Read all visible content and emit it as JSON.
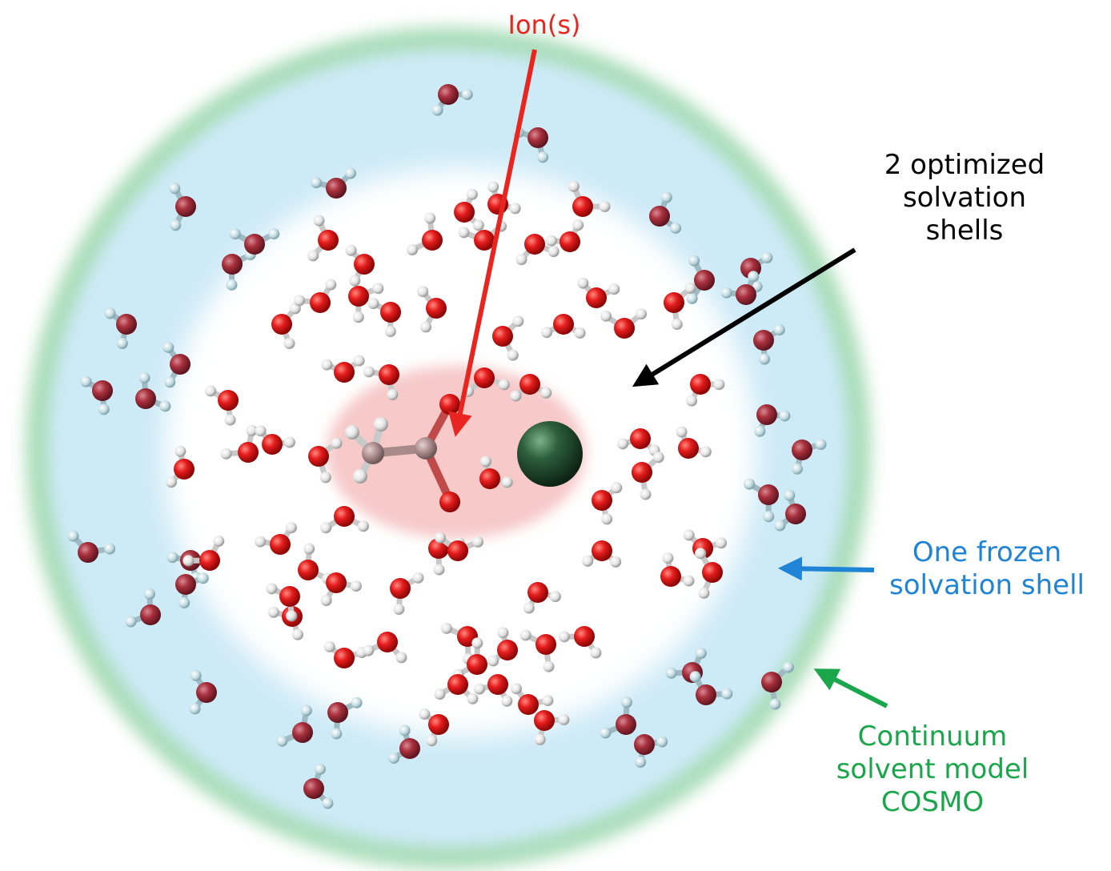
{
  "labels": {
    "ion": {
      "text": "Ion(s)",
      "color": "#e8261f"
    },
    "optimized": {
      "lines": [
        "2 optimized",
        "solvation",
        "shells"
      ],
      "color": "#000000"
    },
    "frozen": {
      "lines": [
        "One frozen",
        "solvation shell"
      ],
      "color": "#1f84d6"
    },
    "cosmo": {
      "lines": [
        "Continuum",
        "solvent model",
        "COSMO"
      ],
      "color": "#1aa64a"
    }
  },
  "colors": {
    "continuum_ring": "#a9ddb8",
    "frozen_shell": "#cdeaf7",
    "optimized_region": "#ffffff",
    "ion_region": "#f7c9c9",
    "oxygen_inner": "#e01515",
    "oxygen_outer": "#a8303c",
    "hydrogen_inner": "#eeeeee",
    "hydrogen_outer": "#c4dde3",
    "carbon": "#a98a8a",
    "counter_ion": "#2c5e3c",
    "arrow_ion": "#e8261f",
    "arrow_optimized": "#000000",
    "arrow_frozen": "#1f84d6",
    "arrow_cosmo": "#1aa64a"
  },
  "molecules": {
    "description_free": true,
    "water_count_approx": 130
  }
}
